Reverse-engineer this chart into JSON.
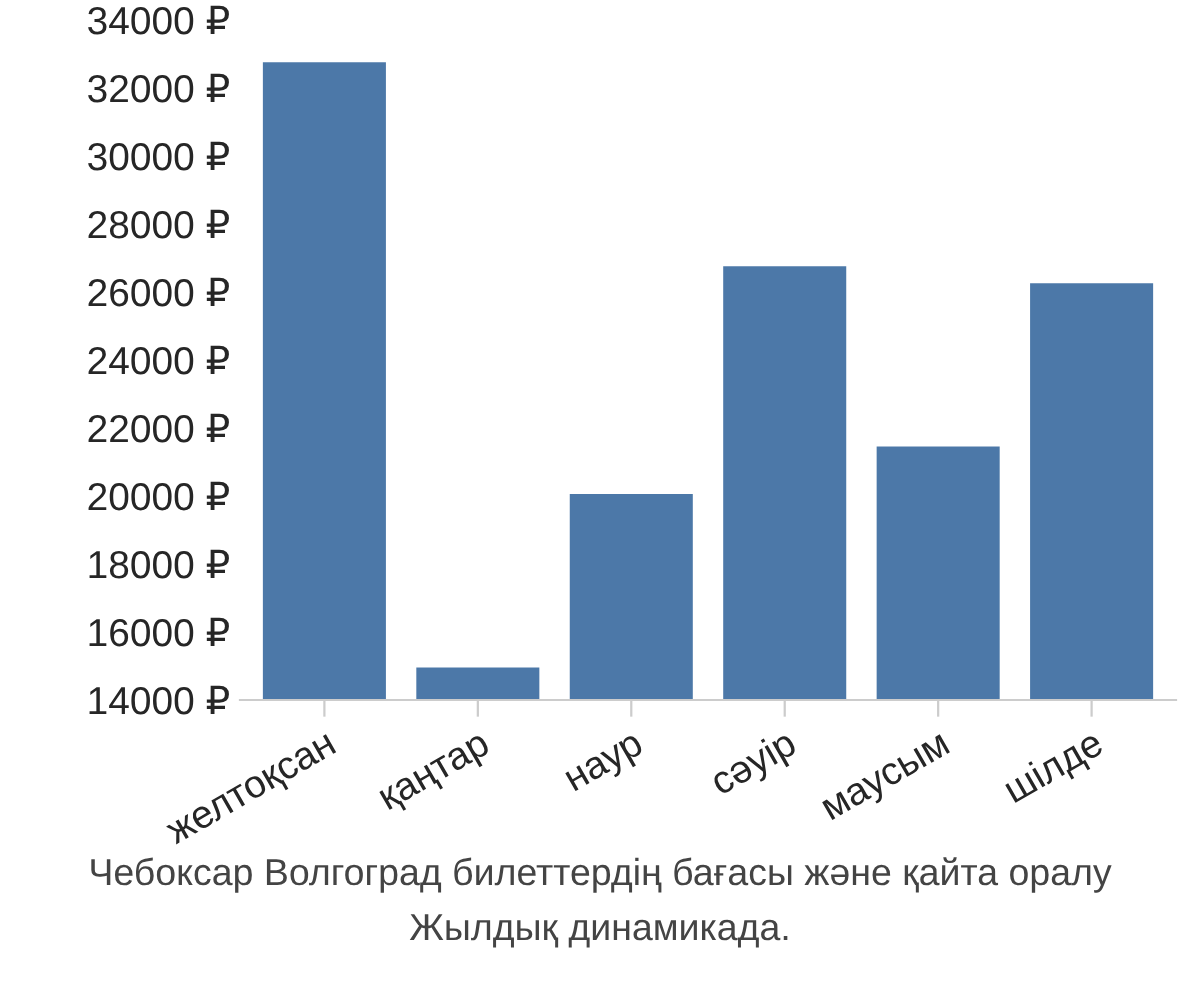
{
  "chart_data": {
    "type": "bar",
    "categories": [
      "желтоқсан",
      "қаңтар",
      "наур",
      "сәуір",
      "маусым",
      "шілде"
    ],
    "values": [
      32800,
      15000,
      20100,
      26800,
      21500,
      26300
    ],
    "color": "#4c78a8",
    "ylim": [
      14000,
      34000
    ],
    "yticks": [
      {
        "value": 14000,
        "label": "14000 ₽"
      },
      {
        "value": 16000,
        "label": "16000 ₽"
      },
      {
        "value": 18000,
        "label": "18000 ₽"
      },
      {
        "value": 20000,
        "label": "20000 ₽"
      },
      {
        "value": 22000,
        "label": "22000 ₽"
      },
      {
        "value": 24000,
        "label": "24000 ₽"
      },
      {
        "value": 26000,
        "label": "26000 ₽"
      },
      {
        "value": 28000,
        "label": "28000 ₽"
      },
      {
        "value": 30000,
        "label": "30000 ₽"
      },
      {
        "value": 32000,
        "label": "32000 ₽"
      },
      {
        "value": 34000,
        "label": "34000 ₽"
      }
    ],
    "grid": false,
    "annotations": [
      "Чебоксар Волгоград билеттердің бағасы және қайта оралу",
      "Жылдық динамикада."
    ]
  }
}
